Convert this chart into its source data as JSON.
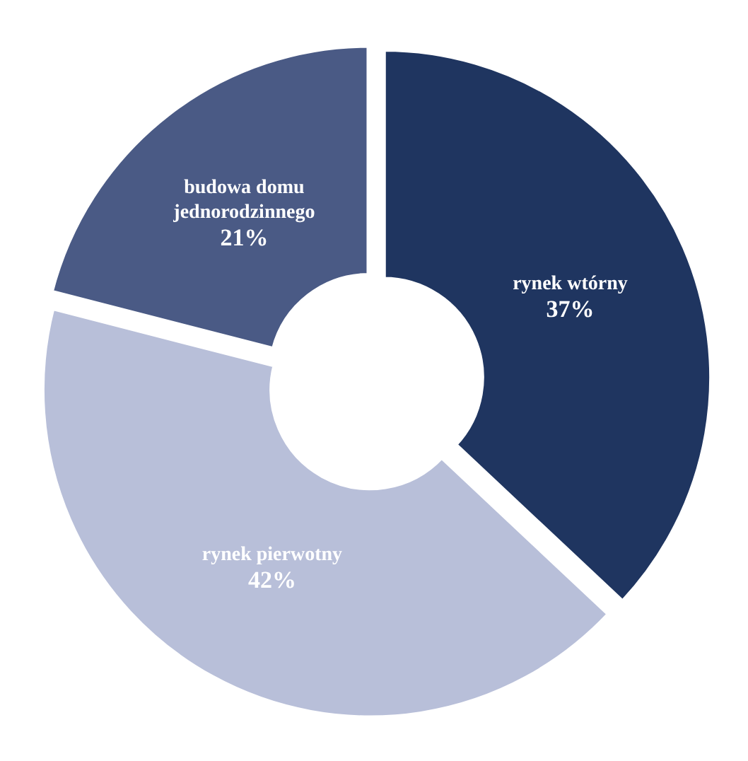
{
  "chart_data": {
    "type": "donut",
    "categories": [
      "rynek wtórny",
      "rynek pierwotny",
      "budowa domu jednorodzinnego"
    ],
    "values": [
      37,
      42,
      21
    ],
    "value_labels": [
      "37%",
      "42%",
      "21%"
    ],
    "colors": [
      "#1f3560",
      "#b8bfd9",
      "#4a5a85"
    ]
  }
}
